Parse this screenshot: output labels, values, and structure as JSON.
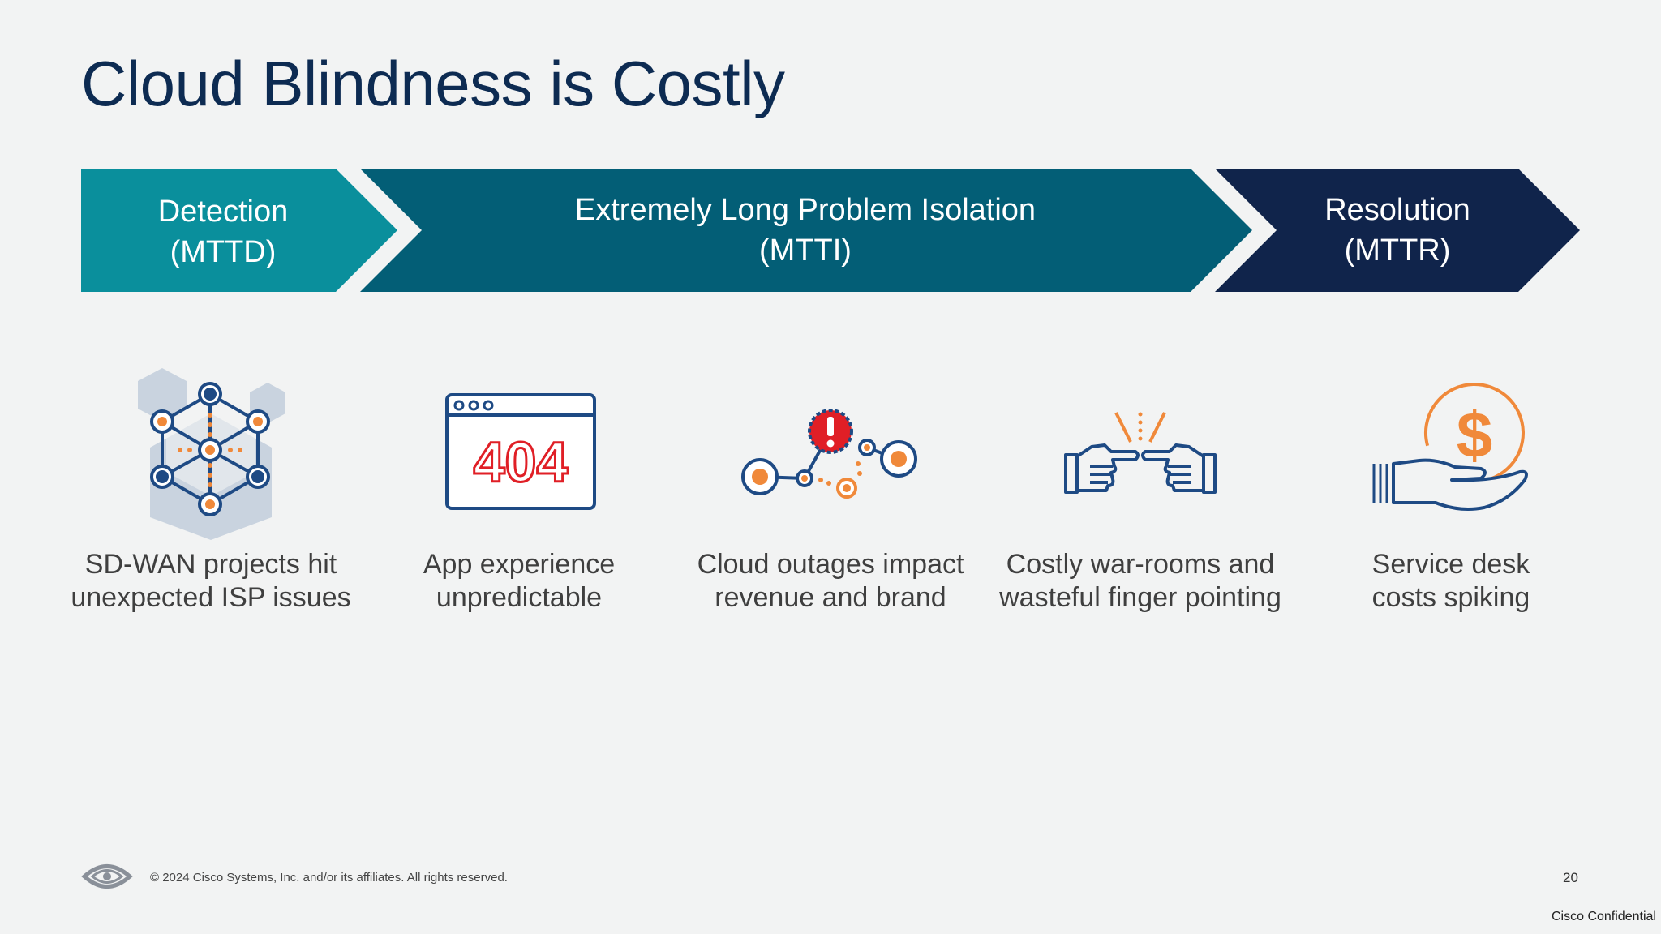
{
  "title": "Cloud Blindness is Costly",
  "phases": [
    {
      "line1": "Detection",
      "line2": "(MTTD)",
      "color": "#0a8f9c"
    },
    {
      "line1": "Extremely Long Problem Isolation",
      "line2": "(MTTI)",
      "color": "#035e76"
    },
    {
      "line1": "Resolution",
      "line2": "(MTTR)",
      "color": "#10244b"
    }
  ],
  "items": [
    {
      "icon": "network-cube-icon",
      "line1": "SD-WAN projects hit",
      "line2": "unexpected ISP issues"
    },
    {
      "icon": "browser-404-icon",
      "line1": "App experience",
      "line2": "unpredictable",
      "error_code": "404"
    },
    {
      "icon": "outage-network-icon",
      "line1": "Cloud outages impact",
      "line2": "revenue and brand"
    },
    {
      "icon": "finger-pointing-icon",
      "line1": "Costly war-rooms and",
      "line2": "wasteful finger pointing"
    },
    {
      "icon": "hand-dollar-icon",
      "line1": "Service desk",
      "line2": "costs spiking",
      "currency": "$"
    }
  ],
  "footer": {
    "copyright": "© 2024 Cisco Systems, Inc. and/or its affiliates. All rights reserved.",
    "page_number": "20",
    "confidential": "Cisco Confidential"
  },
  "colors": {
    "accent_orange": "#f0893a",
    "icon_navy": "#1e4a84",
    "error_red": "#e01f26"
  }
}
